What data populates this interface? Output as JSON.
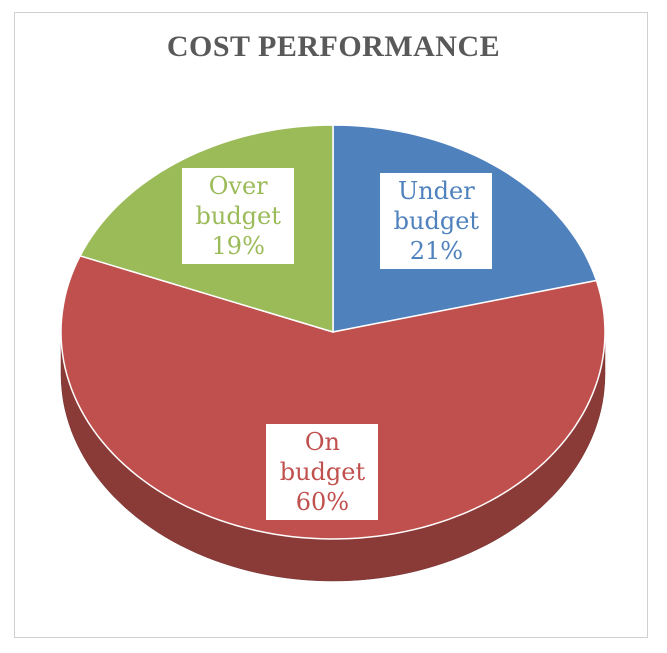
{
  "chart_data": {
    "type": "pie",
    "title": "COST PERFORMANCE",
    "categories": [
      "Under budget",
      "On budget",
      "Over budget"
    ],
    "values": [
      21,
      60,
      19
    ],
    "value_labels": [
      "21%",
      "60%",
      "19%"
    ],
    "colors": [
      "#4f81bd",
      "#c0504d",
      "#9bbb59"
    ]
  }
}
